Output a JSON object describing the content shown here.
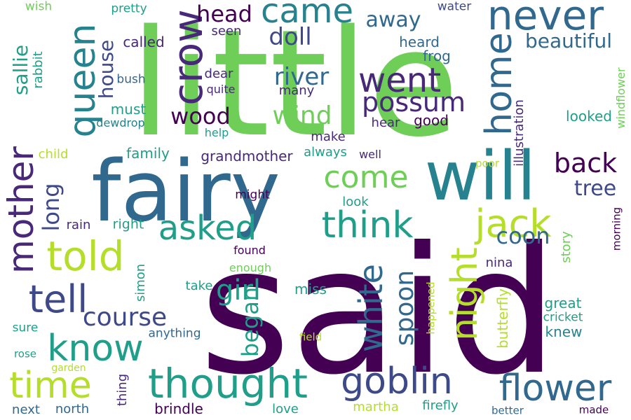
{
  "palette": {
    "purple": "#440154",
    "indigo": "#482878",
    "blue": "#3e4989",
    "slate": "#31688e",
    "teal": "#26828e",
    "sea": "#1f9e89",
    "green": "#35b779",
    "lime": "#6ece58",
    "yellow": "#b5de2b"
  },
  "words": {
    "said": "said",
    "little": "little",
    "fairy": "fairy",
    "will": "will",
    "came": "came",
    "never": "never",
    "queen": "queen",
    "crow": "crow",
    "went": "went",
    "home": "home",
    "possum": "possum",
    "mother": "mother",
    "told": "told",
    "know": "know",
    "tell": "tell",
    "time": "time",
    "thought": "thought",
    "goblin": "goblin",
    "flower": "flower",
    "jack": "jack",
    "think": "think",
    "asked": "asked",
    "come": "come",
    "night": "night",
    "white": "white",
    "spoon": "spoon",
    "course": "course",
    "girl": "girl",
    "began": "began",
    "wood": "wood",
    "wind": "wind",
    "river": "river",
    "doll": "doll",
    "head": "head",
    "away": "away",
    "beautiful": "beautiful",
    "back": "back",
    "tree": "tree",
    "coon": "coon",
    "long": "long",
    "sallie": "sallie",
    "house": "house",
    "rabbit": "rabbit",
    "wish": "wish",
    "pretty": "pretty",
    "water": "water",
    "called": "called",
    "seen": "seen",
    "heard": "heard",
    "frog": "frog",
    "dear": "dear",
    "many": "many",
    "quite": "quite",
    "bush": "bush",
    "must": "must",
    "dewdrop": "dewdrop",
    "hear": "hear",
    "good": "good",
    "looked": "looked",
    "illustration": "illustration",
    "windflower": "windflower",
    "make": "make",
    "help": "help",
    "child": "child",
    "family": "family",
    "grandmother": "grandmother",
    "always": "always",
    "well": "well",
    "poor": "poor",
    "might": "might",
    "look": "look",
    "rain": "rain",
    "right": "right",
    "found": "found",
    "enough": "enough",
    "simon": "simon",
    "take": "take",
    "miss": "miss",
    "nina": "nina",
    "story": "story",
    "morning": "morning",
    "butterfly": "butterfly",
    "great": "great",
    "cricket": "cricket",
    "knew": "knew",
    "happened": "happened",
    "sure": "sure",
    "anything": "anything",
    "field": "field",
    "rose": "rose",
    "garden": "garden",
    "thing": "thing",
    "next": "next",
    "north": "north",
    "brindle": "brindle",
    "love": "love",
    "martha": "martha",
    "firefly": "firefly",
    "better": "better",
    "made": "made"
  }
}
